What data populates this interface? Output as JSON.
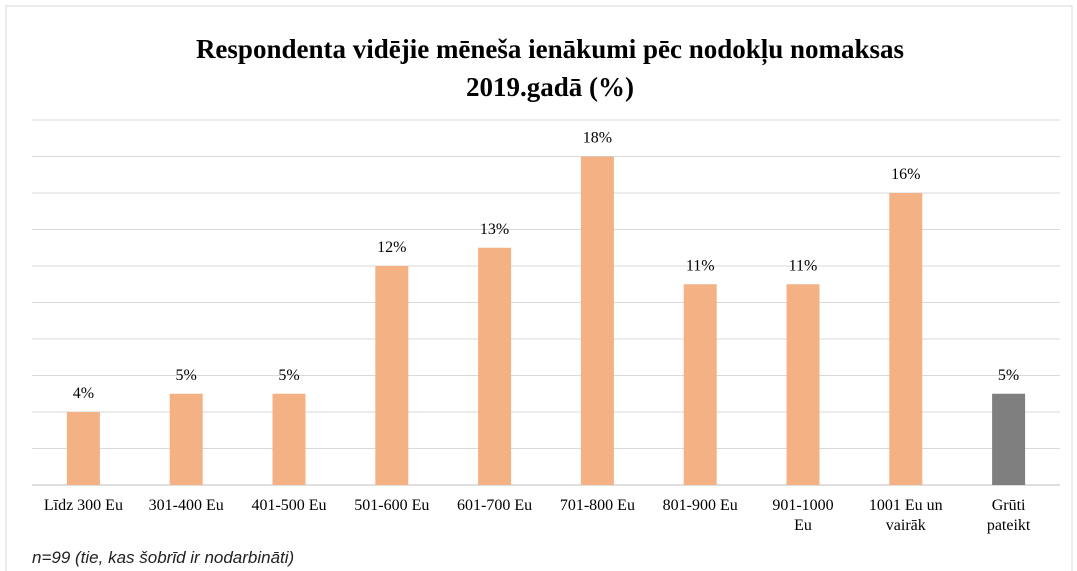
{
  "chart_data": {
    "type": "bar",
    "title": "Respondenta vidējie mēneša ienākumi pēc nodokļu nomaksas 2019.gadā (%)",
    "categories": [
      "Līdz 300 Eu",
      "301-400 Eu",
      "401-500 Eu",
      "501-600 Eu",
      "601-700 Eu",
      "701-800 Eu",
      "801-900 Eu",
      "901-1000 Eu",
      "1001 Eu un vairāk",
      "Grūti pateikt"
    ],
    "values": [
      4,
      5,
      5,
      12,
      13,
      18,
      11,
      11,
      16,
      5
    ],
    "value_labels": [
      "4%",
      "5%",
      "5%",
      "12%",
      "13%",
      "18%",
      "11%",
      "11%",
      "16%",
      "5%"
    ],
    "colors": [
      "#f4b183",
      "#f4b183",
      "#f4b183",
      "#f4b183",
      "#f4b183",
      "#f4b183",
      "#f4b183",
      "#f4b183",
      "#f4b183",
      "#7f7f7f"
    ],
    "ylim": [
      0,
      20
    ],
    "yticks": [
      0,
      2,
      4,
      6,
      8,
      10,
      12,
      14,
      16,
      18,
      20
    ],
    "grid": true,
    "note": "n=99 (tie, kas šobrīd ir nodarbināti)"
  }
}
